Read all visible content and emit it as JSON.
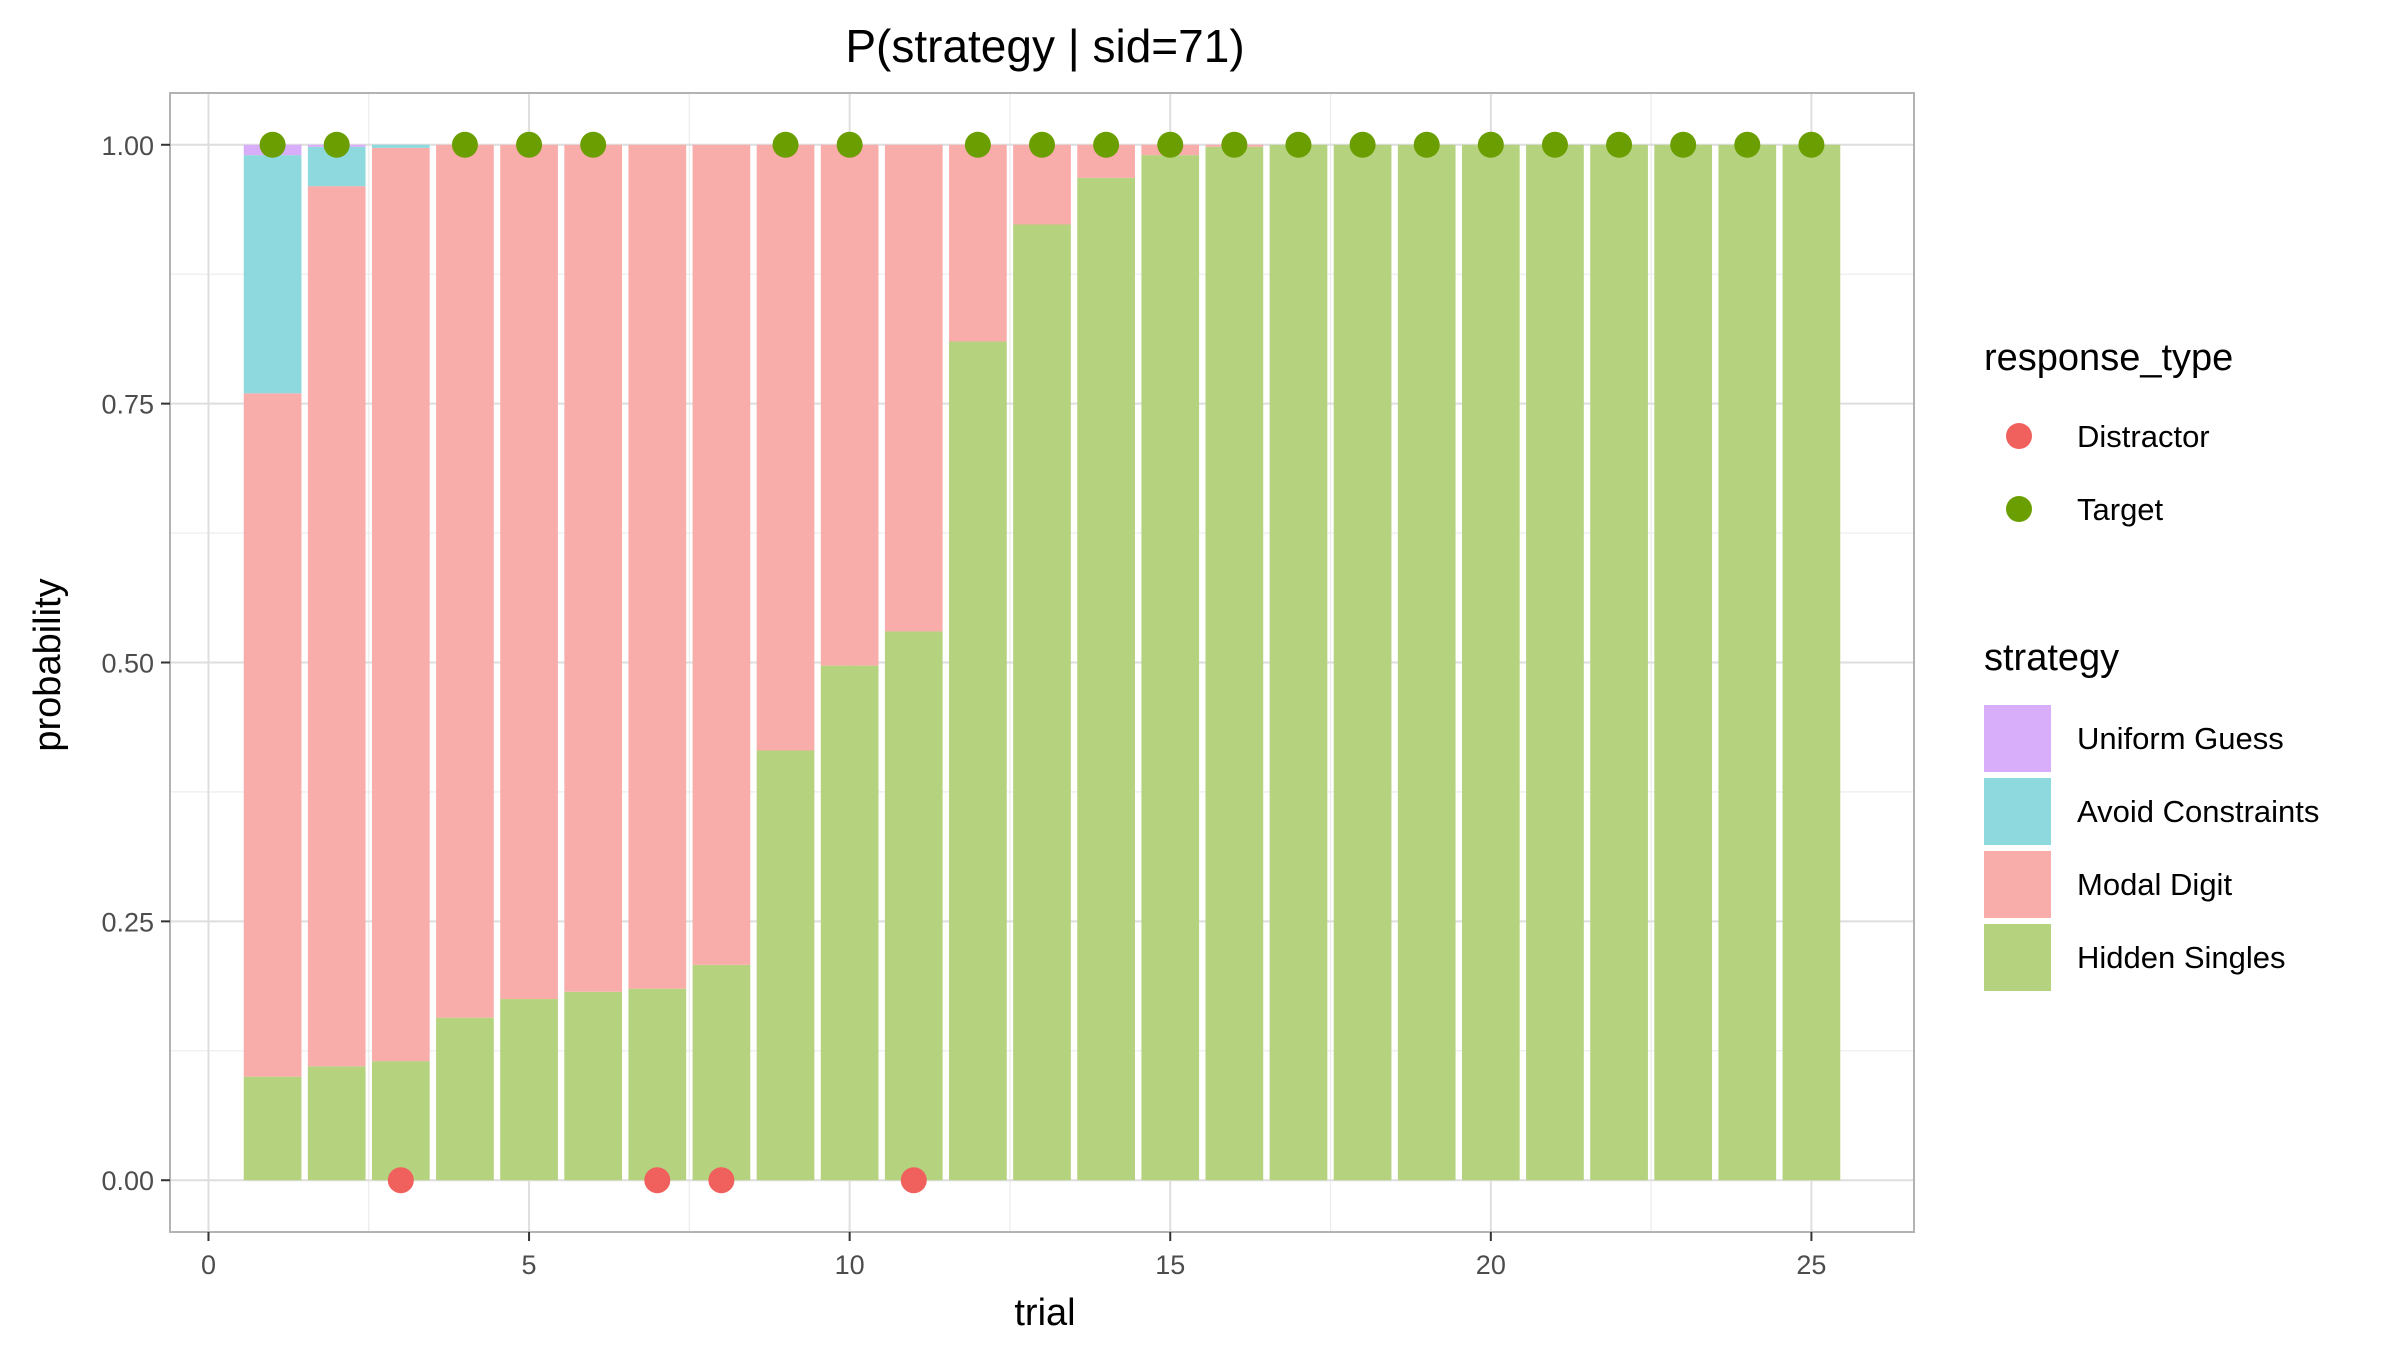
{
  "chart_data": {
    "type": "bar",
    "title": "P(strategy | sid=71)",
    "xlabel": "trial",
    "ylabel": "probability",
    "xlim": [
      -0.6,
      26.6
    ],
    "ylim": [
      -0.05,
      1.05
    ],
    "xticks": [
      0,
      5,
      10,
      15,
      20,
      25
    ],
    "yticks": [
      0,
      0.25,
      0.5,
      0.75,
      1
    ],
    "ytick_labels": [
      "0.00",
      "0.25",
      "0.50",
      "0.75",
      "1.00"
    ],
    "grid": true,
    "stacked": true,
    "x": [
      1,
      2,
      3,
      4,
      5,
      6,
      7,
      8,
      9,
      10,
      11,
      12,
      13,
      14,
      15,
      16,
      17,
      18,
      19,
      20,
      21,
      22,
      23,
      24,
      25
    ],
    "series": [
      {
        "name": "Hidden Singles",
        "color": "#b5d27f",
        "values": [
          0.1,
          0.11,
          0.115,
          0.157,
          0.175,
          0.182,
          0.185,
          0.208,
          0.415,
          0.497,
          0.53,
          0.81,
          0.923,
          0.968,
          0.99,
          0.998,
          1.0,
          1.0,
          1.0,
          1.0,
          1.0,
          1.0,
          1.0,
          1.0,
          1.0
        ]
      },
      {
        "name": "Modal Digit",
        "color": "#f8adab",
        "values": [
          0.66,
          0.85,
          0.882,
          0.843,
          0.825,
          0.818,
          0.815,
          0.792,
          0.585,
          0.503,
          0.47,
          0.19,
          0.077,
          0.032,
          0.01,
          0.002,
          0,
          0,
          0,
          0,
          0,
          0,
          0,
          0,
          0
        ]
      },
      {
        "name": "Avoid Constraints",
        "color": "#8dd9dd",
        "values": [
          0.23,
          0.038,
          0.003,
          0,
          0,
          0,
          0,
          0,
          0,
          0,
          0,
          0,
          0,
          0,
          0,
          0,
          0,
          0,
          0,
          0,
          0,
          0,
          0,
          0,
          0
        ]
      },
      {
        "name": "Uniform Guess",
        "color": "#d8aefa",
        "values": [
          0.01,
          0.002,
          0,
          0,
          0,
          0,
          0,
          0,
          0,
          0,
          0,
          0,
          0,
          0,
          0,
          0,
          0,
          0,
          0,
          0,
          0,
          0,
          0,
          0,
          0
        ]
      }
    ],
    "points": {
      "y": [
        1,
        1,
        0,
        1,
        1,
        1,
        0,
        0,
        1,
        1,
        0,
        1,
        1,
        1,
        1,
        1,
        1,
        1,
        1,
        1,
        1,
        1,
        1,
        1,
        1
      ],
      "response_type": [
        "Target",
        "Target",
        "Distractor",
        "Target",
        "Target",
        "Target",
        "Distractor",
        "Distractor",
        "Target",
        "Target",
        "Distractor",
        "Target",
        "Target",
        "Target",
        "Target",
        "Target",
        "Target",
        "Target",
        "Target",
        "Target",
        "Target",
        "Target",
        "Target",
        "Target",
        "Target"
      ]
    },
    "legends": [
      {
        "title": "response_type",
        "entries": [
          {
            "label": "Distractor",
            "color": "#f0605d",
            "shape": "circle"
          },
          {
            "label": "Target",
            "color": "#6b9e00",
            "shape": "circle"
          }
        ]
      },
      {
        "title": "strategy",
        "entries": [
          {
            "label": "Uniform Guess",
            "color": "#d8aefa",
            "shape": "square"
          },
          {
            "label": "Avoid Constraints",
            "color": "#8dd9dd",
            "shape": "square"
          },
          {
            "label": "Modal Digit",
            "color": "#f8adab",
            "shape": "square"
          },
          {
            "label": "Hidden Singles",
            "color": "#b5d27f",
            "shape": "square"
          }
        ]
      }
    ],
    "legend_position": "right"
  }
}
